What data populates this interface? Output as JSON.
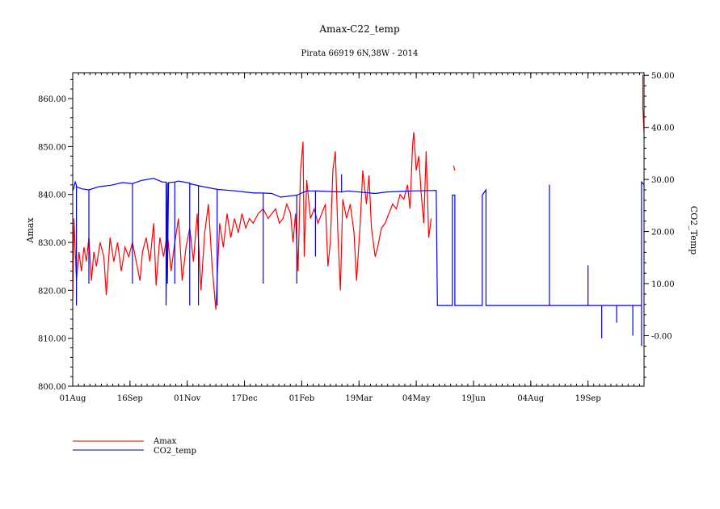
{
  "chart_data": {
    "type": "line",
    "title": "Amax-C22_temp",
    "subtitle": "Pirata 66919 6N,38W - 2014",
    "ylabel": "Amax",
    "y2label": "CO2_Temp",
    "xlim": [
      "2014-08-01",
      "2015-11-03"
    ],
    "ylim": [
      800,
      865.4
    ],
    "y2lim": [
      -9.7,
      50.5
    ],
    "grid": false,
    "legend_placement": "bottom-left",
    "x_ticks": [
      {
        "date": "2014-08-01",
        "label": "01Aug"
      },
      {
        "date": "2014-09-16",
        "label": "16Sep"
      },
      {
        "date": "2014-11-01",
        "label": "01Nov"
      },
      {
        "date": "2014-12-17",
        "label": "17Dec"
      },
      {
        "date": "2015-02-01",
        "label": "01Feb"
      },
      {
        "date": "2015-03-19",
        "label": "19Mar"
      },
      {
        "date": "2015-05-04",
        "label": "04May"
      },
      {
        "date": "2015-06-19",
        "label": "19Jun"
      },
      {
        "date": "2015-08-04",
        "label": "04Aug"
      },
      {
        "date": "2015-09-19",
        "label": "19Sep"
      }
    ],
    "y_ticks": [
      {
        "value": 800,
        "label": "800.00"
      },
      {
        "value": 810,
        "label": "810.00"
      },
      {
        "value": 820,
        "label": "820.00"
      },
      {
        "value": 830,
        "label": "830.00"
      },
      {
        "value": 840,
        "label": "840.00"
      },
      {
        "value": 850,
        "label": "850.00"
      },
      {
        "value": 860,
        "label": "860.00"
      }
    ],
    "y2_ticks": [
      {
        "value": 0,
        "label": "-0.00"
      },
      {
        "value": 10,
        "label": "10.00"
      },
      {
        "value": 20,
        "label": "20.00"
      },
      {
        "value": 30,
        "label": "30.00"
      },
      {
        "value": 40,
        "label": "40.00"
      },
      {
        "value": 50,
        "label": "50.00"
      }
    ],
    "series": [
      {
        "name": "Amax",
        "axis": "left",
        "color": "#ff0000",
        "legend_color": "#cc0000",
        "points": [
          [
            "2014-08-01",
            818
          ],
          [
            "2014-08-02",
            835
          ],
          [
            "2014-08-04",
            822
          ],
          [
            "2014-08-06",
            828
          ],
          [
            "2014-08-08",
            824
          ],
          [
            "2014-08-10",
            829
          ],
          [
            "2014-08-12",
            826
          ],
          [
            "2014-08-14",
            831
          ],
          [
            "2014-08-16",
            822
          ],
          [
            "2014-08-18",
            828
          ],
          [
            "2014-08-20",
            825
          ],
          [
            "2014-08-23",
            830
          ],
          [
            "2014-08-26",
            827
          ],
          [
            "2014-08-28",
            819
          ],
          [
            "2014-08-31",
            831
          ],
          [
            "2014-09-03",
            826
          ],
          [
            "2014-09-06",
            830
          ],
          [
            "2014-09-09",
            824
          ],
          [
            "2014-09-12",
            829
          ],
          [
            "2014-09-15",
            827
          ],
          [
            "2014-09-18",
            830
          ],
          [
            "2014-09-21",
            826
          ],
          [
            "2014-09-24",
            822
          ],
          [
            "2014-09-26",
            828
          ],
          [
            "2014-09-29",
            831
          ],
          [
            "2014-10-02",
            826
          ],
          [
            "2014-10-05",
            834
          ],
          [
            "2014-10-07",
            821
          ],
          [
            "2014-10-10",
            831
          ],
          [
            "2014-10-13",
            827
          ],
          [
            "2014-10-16",
            832
          ],
          [
            "2014-10-19",
            824
          ],
          [
            "2014-10-22",
            830
          ],
          [
            "2014-10-25",
            835
          ],
          [
            "2014-10-28",
            822
          ],
          [
            "2014-10-31",
            829
          ],
          [
            "2014-11-03",
            833
          ],
          [
            "2014-11-06",
            826
          ],
          [
            "2014-11-09",
            836
          ],
          [
            "2014-11-12",
            820
          ],
          [
            "2014-11-15",
            832
          ],
          [
            "2014-11-18",
            838
          ],
          [
            "2014-11-21",
            825
          ],
          [
            "2014-11-24",
            816
          ],
          [
            "2014-11-27",
            834
          ],
          [
            "2014-11-30",
            829
          ],
          [
            "2014-12-03",
            836
          ],
          [
            "2014-12-06",
            831
          ],
          [
            "2014-12-09",
            835
          ],
          [
            "2014-12-12",
            832
          ],
          [
            "2014-12-15",
            836
          ],
          [
            "2014-12-18",
            833
          ],
          [
            "2014-12-21",
            835
          ],
          [
            "2014-12-24",
            834
          ],
          [
            "2014-12-28",
            836
          ],
          [
            "2015-01-01",
            837
          ],
          [
            "2015-01-05",
            835
          ],
          [
            "2015-01-08",
            836
          ],
          [
            "2015-01-11",
            837
          ],
          [
            "2015-01-14",
            834
          ],
          [
            "2015-01-17",
            835
          ],
          [
            "2015-01-20",
            838
          ],
          [
            "2015-01-23",
            836
          ],
          [
            "2015-01-25",
            830
          ],
          [
            "2015-01-27",
            836
          ],
          [
            "2015-01-29",
            824
          ],
          [
            "2015-01-31",
            845
          ],
          [
            "2015-02-02",
            851
          ],
          [
            "2015-02-03",
            827
          ],
          [
            "2015-02-05",
            843
          ],
          [
            "2015-02-08",
            835
          ],
          [
            "2015-02-11",
            837
          ],
          [
            "2015-02-14",
            834
          ],
          [
            "2015-02-17",
            836
          ],
          [
            "2015-02-20",
            838
          ],
          [
            "2015-02-22",
            825
          ],
          [
            "2015-02-24",
            830
          ],
          [
            "2015-02-26",
            845
          ],
          [
            "2015-02-28",
            849
          ],
          [
            "2015-03-02",
            832
          ],
          [
            "2015-03-04",
            820
          ],
          [
            "2015-03-06",
            839
          ],
          [
            "2015-03-09",
            835
          ],
          [
            "2015-03-12",
            838
          ],
          [
            "2015-03-15",
            832
          ],
          [
            "2015-03-17",
            822
          ],
          [
            "2015-03-20",
            834
          ],
          [
            "2015-03-22",
            845
          ],
          [
            "2015-03-25",
            838
          ],
          [
            "2015-03-27",
            844
          ],
          [
            "2015-03-29",
            833
          ],
          [
            "2015-04-01",
            827
          ],
          [
            "2015-04-03",
            829
          ],
          [
            "2015-04-06",
            833
          ],
          [
            "2015-04-09",
            834
          ],
          [
            "2015-04-12",
            836
          ],
          [
            "2015-04-15",
            838
          ],
          [
            "2015-04-18",
            837
          ],
          [
            "2015-04-21",
            840
          ],
          [
            "2015-04-24",
            839
          ],
          [
            "2015-04-27",
            842
          ],
          [
            "2015-04-29",
            837
          ],
          [
            "2015-05-01",
            850
          ],
          [
            "2015-05-02",
            853
          ],
          [
            "2015-05-04",
            845
          ],
          [
            "2015-05-06",
            848
          ],
          [
            "2015-05-08",
            840
          ],
          [
            "2015-05-10",
            834
          ],
          [
            "2015-05-12",
            849
          ],
          [
            "2015-05-14",
            831
          ],
          [
            "2015-05-16",
            835
          ],
          null,
          [
            "2015-06-03",
            846
          ],
          [
            "2015-06-04",
            845
          ],
          null,
          [
            "2015-11-02",
            865
          ],
          [
            "2015-11-02",
            858
          ],
          [
            "2015-11-03",
            853
          ]
        ]
      },
      {
        "name": "CO2_temp",
        "axis": "right",
        "color": "#0000ff",
        "legend_color": "#000099",
        "points": [
          [
            "2014-08-01",
            27.8
          ],
          [
            "2014-08-02",
            28.5
          ],
          [
            "2014-08-03",
            29.5
          ],
          [
            "2014-08-04",
            28.9
          ],
          [
            "2014-08-04",
            5.8
          ],
          [
            "2014-08-04",
            28.6
          ],
          [
            "2014-08-08",
            28.2
          ],
          [
            "2014-08-14",
            28.0
          ],
          [
            "2014-08-14",
            10
          ],
          [
            "2014-08-14",
            28.0
          ],
          [
            "2014-08-22",
            28.6
          ],
          [
            "2014-09-01",
            28.9
          ],
          [
            "2014-09-10",
            29.4
          ],
          [
            "2014-09-18",
            29.2
          ],
          [
            "2014-09-18",
            10
          ],
          [
            "2014-09-18",
            29.2
          ],
          [
            "2014-09-25",
            29.8
          ],
          [
            "2014-10-05",
            30.2
          ],
          [
            "2014-10-12",
            29.5
          ],
          [
            "2014-10-15",
            29.5
          ],
          [
            "2014-10-15",
            5.8
          ],
          [
            "2014-10-16",
            29.4
          ],
          [
            "2014-10-16",
            10
          ],
          [
            "2014-10-17",
            29.4
          ],
          [
            "2014-10-22",
            29.5
          ],
          [
            "2014-10-22",
            10
          ],
          [
            "2014-10-22",
            29.5
          ],
          [
            "2014-10-25",
            29.7
          ],
          [
            "2014-11-03",
            29.3
          ],
          [
            "2014-11-03",
            5.8
          ],
          [
            "2014-11-03",
            29.2
          ],
          [
            "2014-11-10",
            28.8
          ],
          [
            "2014-11-10",
            5.8
          ],
          [
            "2014-11-10",
            28.8
          ],
          [
            "2014-11-25",
            28.1
          ],
          [
            "2014-11-25",
            5.8
          ],
          [
            "2014-11-25",
            28.1
          ],
          [
            "2014-12-10",
            27.8
          ],
          [
            "2014-12-17",
            27.6
          ],
          [
            "2014-12-25",
            27.4
          ],
          [
            "2015-01-01",
            27.4
          ],
          [
            "2015-01-01",
            10
          ],
          [
            "2015-01-01",
            27.4
          ],
          [
            "2015-01-08",
            27.3
          ],
          [
            "2015-01-15",
            26.6
          ],
          [
            "2015-01-28",
            27.0
          ],
          [
            "2015-01-28",
            10
          ],
          [
            "2015-01-28",
            27.0
          ],
          [
            "2015-02-05",
            27.8
          ],
          [
            "2015-02-10",
            27.8
          ],
          [
            "2015-02-12",
            27.8
          ],
          [
            "2015-02-12",
            15.2
          ],
          [
            "2015-02-12",
            27.8
          ],
          [
            "2015-03-05",
            27.6
          ],
          [
            "2015-03-05",
            31
          ],
          [
            "2015-03-05",
            27.6
          ],
          [
            "2015-03-10",
            27.8
          ],
          [
            "2015-04-01",
            27.3
          ],
          [
            "2015-04-10",
            27.6
          ],
          [
            "2015-05-01",
            27.8
          ],
          [
            "2015-05-20",
            27.9
          ],
          [
            "2015-05-21",
            5.8
          ],
          [
            "2015-06-02",
            5.8
          ],
          [
            "2015-06-02",
            27
          ],
          [
            "2015-06-04",
            27
          ],
          [
            "2015-06-04",
            5.8
          ],
          [
            "2015-06-26",
            5.8
          ],
          [
            "2015-06-26",
            27
          ],
          [
            "2015-06-29",
            28
          ],
          [
            "2015-06-29",
            5.8
          ],
          [
            "2015-08-19",
            5.8
          ],
          [
            "2015-08-19",
            29
          ],
          [
            "2015-08-19",
            5.8
          ],
          [
            "2015-09-19",
            5.8
          ],
          [
            "2015-09-19",
            13.5
          ],
          [
            "2015-09-19",
            5.8
          ],
          [
            "2015-09-30",
            5.8
          ],
          [
            "2015-09-30",
            -0.5
          ],
          [
            "2015-09-30",
            5.8
          ],
          [
            "2015-10-12",
            5.8
          ],
          [
            "2015-10-12",
            2.5
          ],
          [
            "2015-10-12",
            5.8
          ],
          [
            "2015-10-25",
            5.8
          ],
          [
            "2015-10-25",
            0
          ],
          [
            "2015-10-25",
            5.8
          ],
          [
            "2015-11-01",
            5.8
          ],
          [
            "2015-11-01",
            10
          ],
          [
            "2015-11-01",
            -2
          ],
          [
            "2015-11-01",
            29.5
          ],
          [
            "2015-11-03",
            29.0
          ]
        ]
      }
    ]
  }
}
